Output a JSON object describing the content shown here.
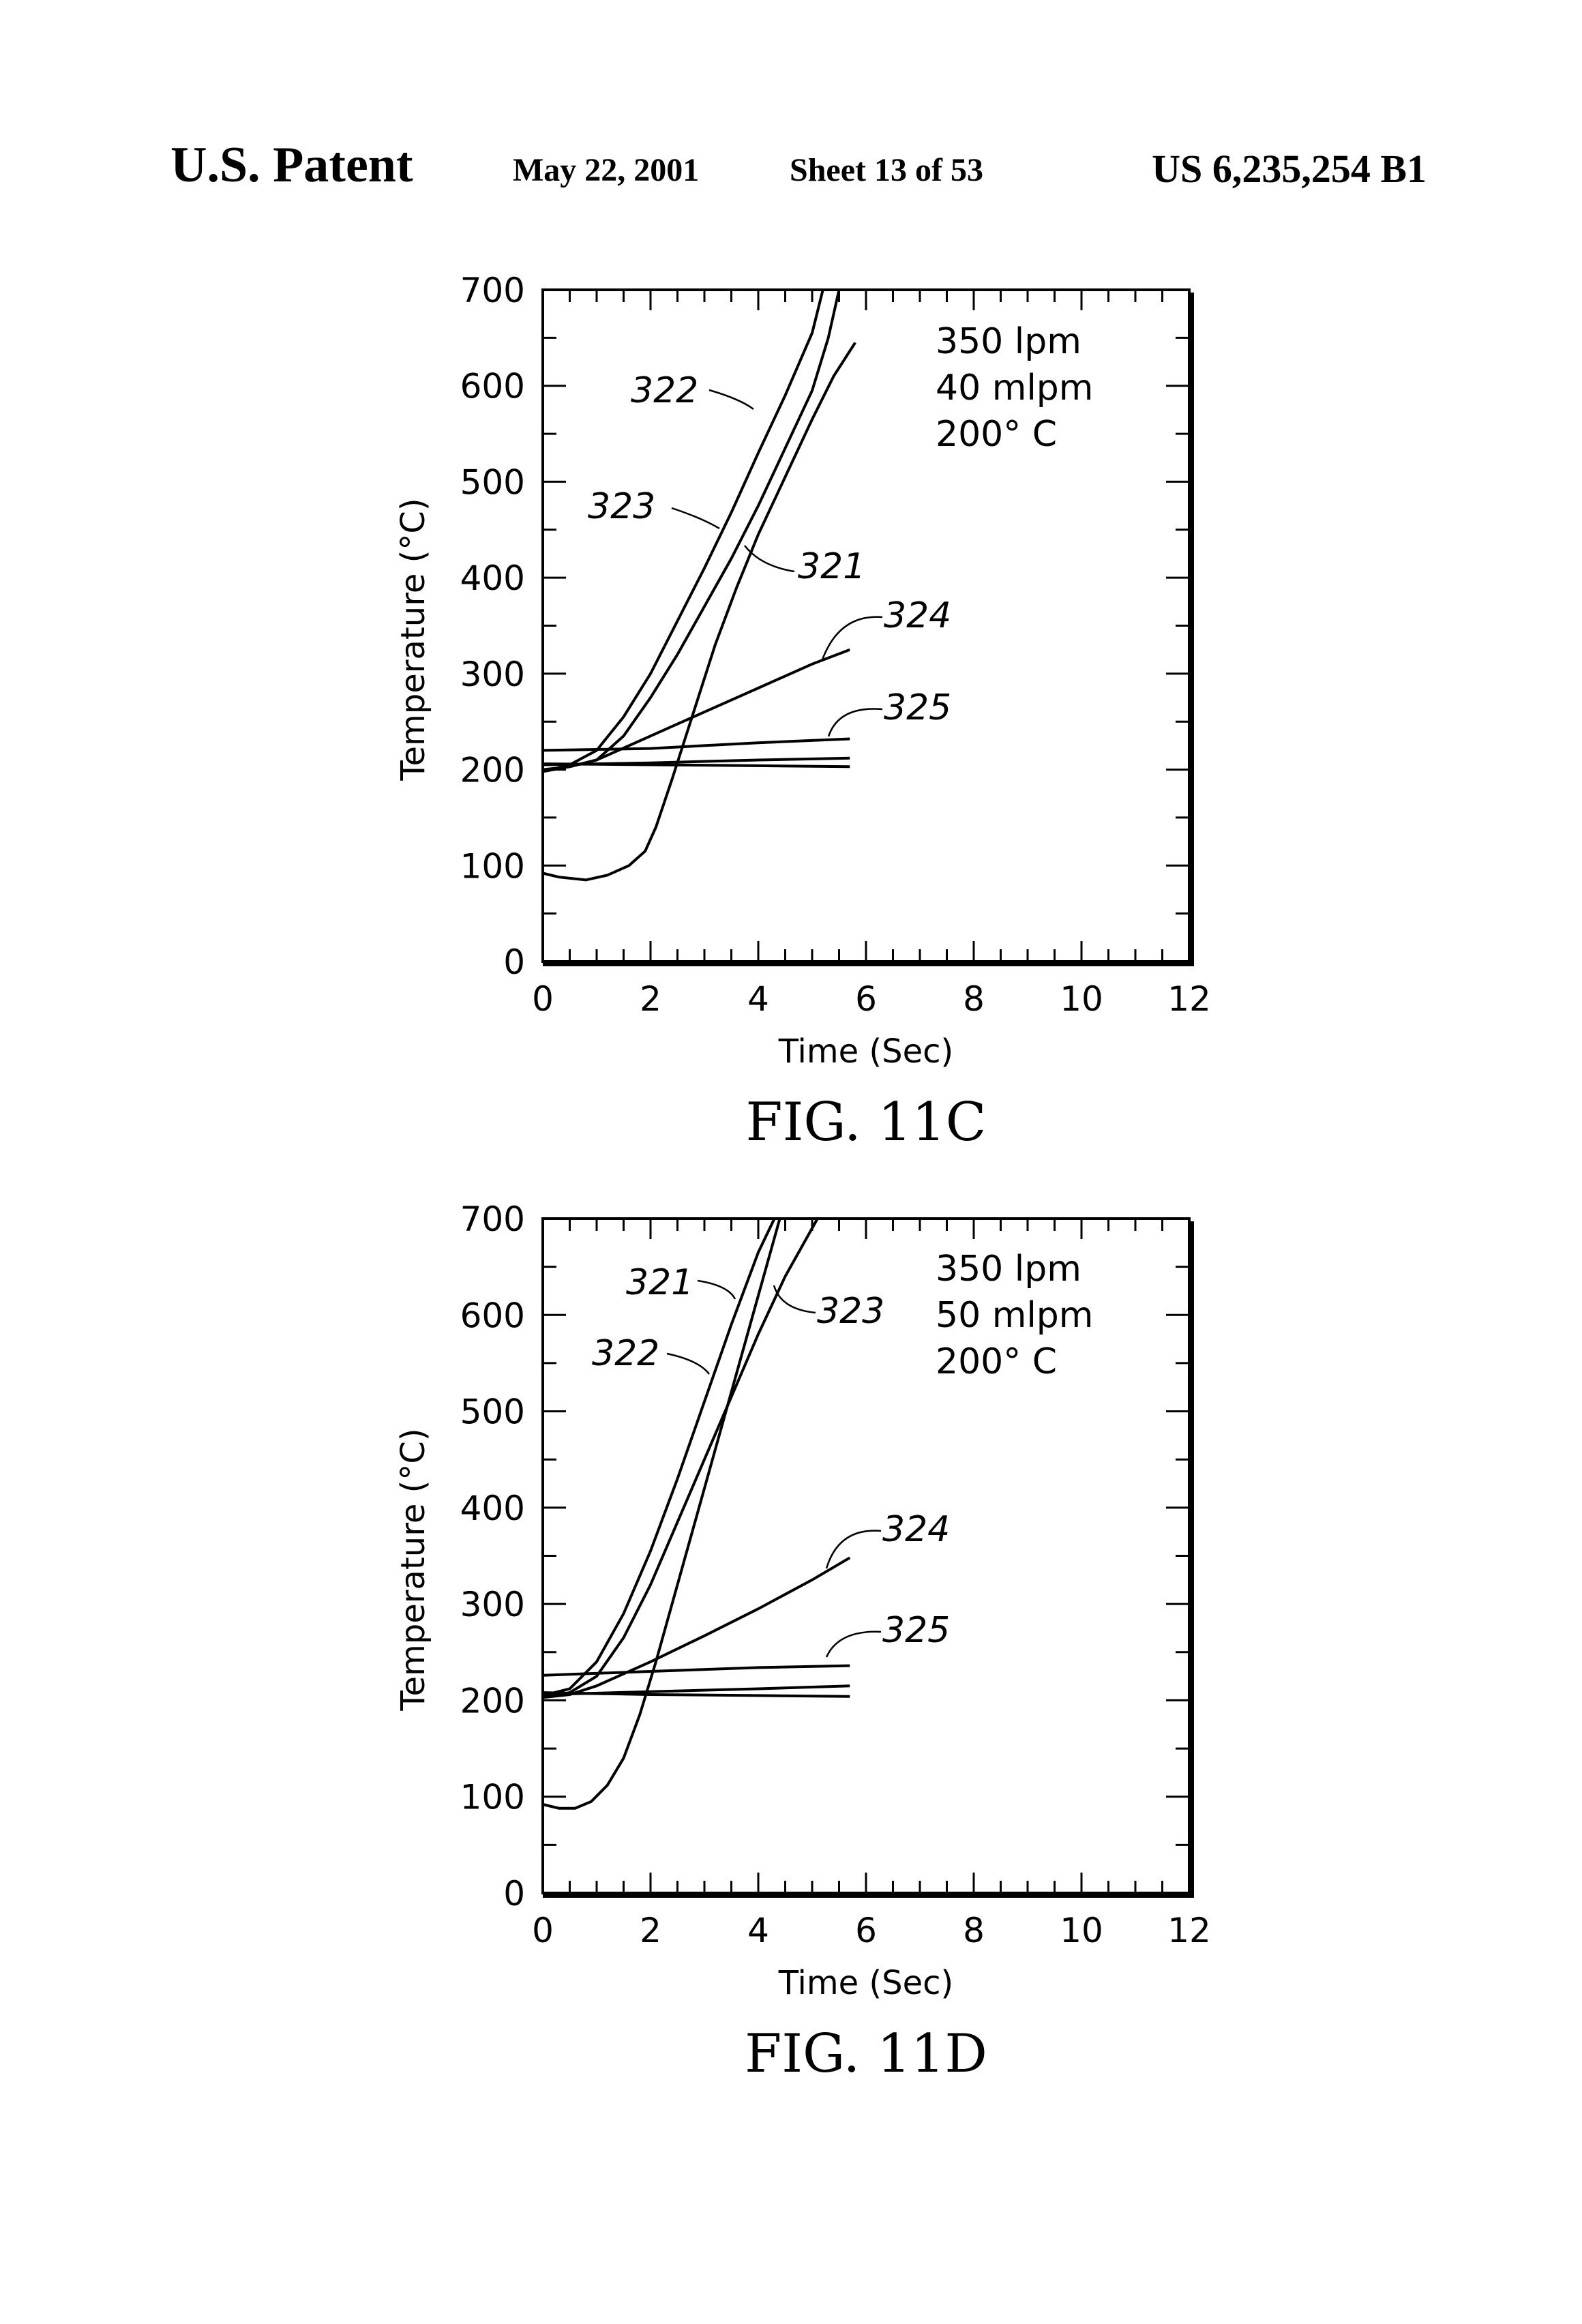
{
  "header": {
    "left": "U.S. Patent",
    "date": "May 22, 2001",
    "sheet": "Sheet 13 of 53",
    "patent_number": "US 6,235,254 B1"
  },
  "chart_data": [
    {
      "type": "line",
      "figure_label": "FIG. 11C",
      "xlabel": "Time (Sec)",
      "ylabel": "Temperature (°C)",
      "xlim": [
        0,
        12
      ],
      "ylim": [
        0,
        700
      ],
      "x_ticks": [
        "0",
        "2",
        "4",
        "6",
        "8",
        "10",
        "12"
      ],
      "y_ticks": [
        "0",
        "100",
        "200",
        "300",
        "400",
        "500",
        "600",
        "700"
      ],
      "conditions": [
        "350 lpm",
        "40 mlpm",
        "200° C"
      ],
      "series": [
        {
          "name": "321",
          "x": [
            0,
            0.3,
            0.8,
            1.2,
            1.6,
            1.9,
            2.1,
            2.4,
            2.8,
            3.2,
            3.6,
            4.0,
            4.5,
            5.0,
            5.4,
            5.8
          ],
          "y": [
            92,
            88,
            85,
            90,
            100,
            115,
            140,
            190,
            260,
            330,
            390,
            445,
            505,
            565,
            610,
            645
          ]
        },
        {
          "name": "322",
          "x": [
            0,
            0.5,
            1.0,
            1.5,
            2.0,
            2.5,
            3.0,
            3.5,
            4.0,
            4.5,
            5.0,
            5.2
          ],
          "y": [
            198,
            205,
            220,
            255,
            300,
            355,
            410,
            468,
            530,
            590,
            655,
            700
          ]
        },
        {
          "name": "323",
          "x": [
            0,
            0.5,
            1.0,
            1.5,
            2.0,
            2.5,
            3.0,
            3.5,
            4.0,
            4.5,
            5.0,
            5.3,
            5.5
          ],
          "y": [
            198,
            203,
            210,
            235,
            275,
            320,
            370,
            420,
            475,
            535,
            595,
            650,
            700
          ]
        },
        {
          "name": "324",
          "x": [
            0,
            0.5,
            1,
            2,
            3,
            4,
            5,
            5.7
          ],
          "y": [
            200,
            203,
            210,
            235,
            260,
            285,
            310,
            325
          ]
        },
        {
          "name": "325",
          "x": [
            0,
            2,
            4,
            5.7
          ],
          "y": [
            220,
            222,
            228,
            232
          ]
        },
        {
          "name": "",
          "x": [
            0,
            2,
            4,
            5.7
          ],
          "y": [
            205,
            207,
            210,
            212
          ]
        },
        {
          "name": "",
          "x": [
            0,
            2,
            4,
            5.7
          ],
          "y": [
            206,
            205,
            204,
            203
          ]
        }
      ],
      "labels": [
        "322",
        "323",
        "321",
        "324",
        "325"
      ]
    },
    {
      "type": "line",
      "figure_label": "FIG. 11D",
      "xlabel": "Time (Sec)",
      "ylabel": "Temperature (°C)",
      "xlim": [
        0,
        12
      ],
      "ylim": [
        0,
        700
      ],
      "x_ticks": [
        "0",
        "2",
        "4",
        "6",
        "8",
        "10",
        "12"
      ],
      "y_ticks": [
        "0",
        "100",
        "200",
        "300",
        "400",
        "500",
        "600",
        "700"
      ],
      "conditions": [
        "350 lpm",
        "50 mlpm",
        "200° C"
      ],
      "series": [
        {
          "name": "321",
          "x": [
            0,
            0.5,
            1.0,
            1.5,
            2.0,
            2.5,
            3.0,
            3.5,
            4.0,
            4.3
          ],
          "y": [
            205,
            212,
            240,
            290,
            355,
            430,
            510,
            590,
            665,
            700
          ]
        },
        {
          "name": "322",
          "x": [
            0,
            0.3,
            0.6,
            0.9,
            1.2,
            1.5,
            1.8,
            2.1,
            2.4,
            2.8,
            3.2,
            3.6,
            4.0,
            4.4
          ],
          "y": [
            92,
            88,
            88,
            95,
            112,
            140,
            185,
            240,
            300,
            380,
            460,
            540,
            620,
            700
          ]
        },
        {
          "name": "323",
          "x": [
            0,
            0.5,
            1.0,
            1.5,
            2.0,
            2.5,
            3.0,
            3.5,
            4.0,
            4.5,
            5.1
          ],
          "y": [
            203,
            208,
            225,
            265,
            320,
            385,
            450,
            515,
            580,
            640,
            700
          ]
        },
        {
          "name": "324",
          "x": [
            0,
            0.5,
            1,
            2,
            3,
            4,
            5,
            5.7
          ],
          "y": [
            203,
            206,
            215,
            240,
            267,
            295,
            325,
            348
          ]
        },
        {
          "name": "325",
          "x": [
            0,
            2,
            4,
            5.7
          ],
          "y": [
            226,
            230,
            234,
            236
          ]
        },
        {
          "name": "",
          "x": [
            0,
            2,
            4,
            5.7
          ],
          "y": [
            206,
            209,
            212,
            215
          ]
        },
        {
          "name": "",
          "x": [
            0,
            2,
            4,
            5.7
          ],
          "y": [
            208,
            206,
            205,
            204
          ]
        }
      ],
      "labels": [
        "321",
        "323",
        "322",
        "324",
        "325"
      ]
    }
  ]
}
